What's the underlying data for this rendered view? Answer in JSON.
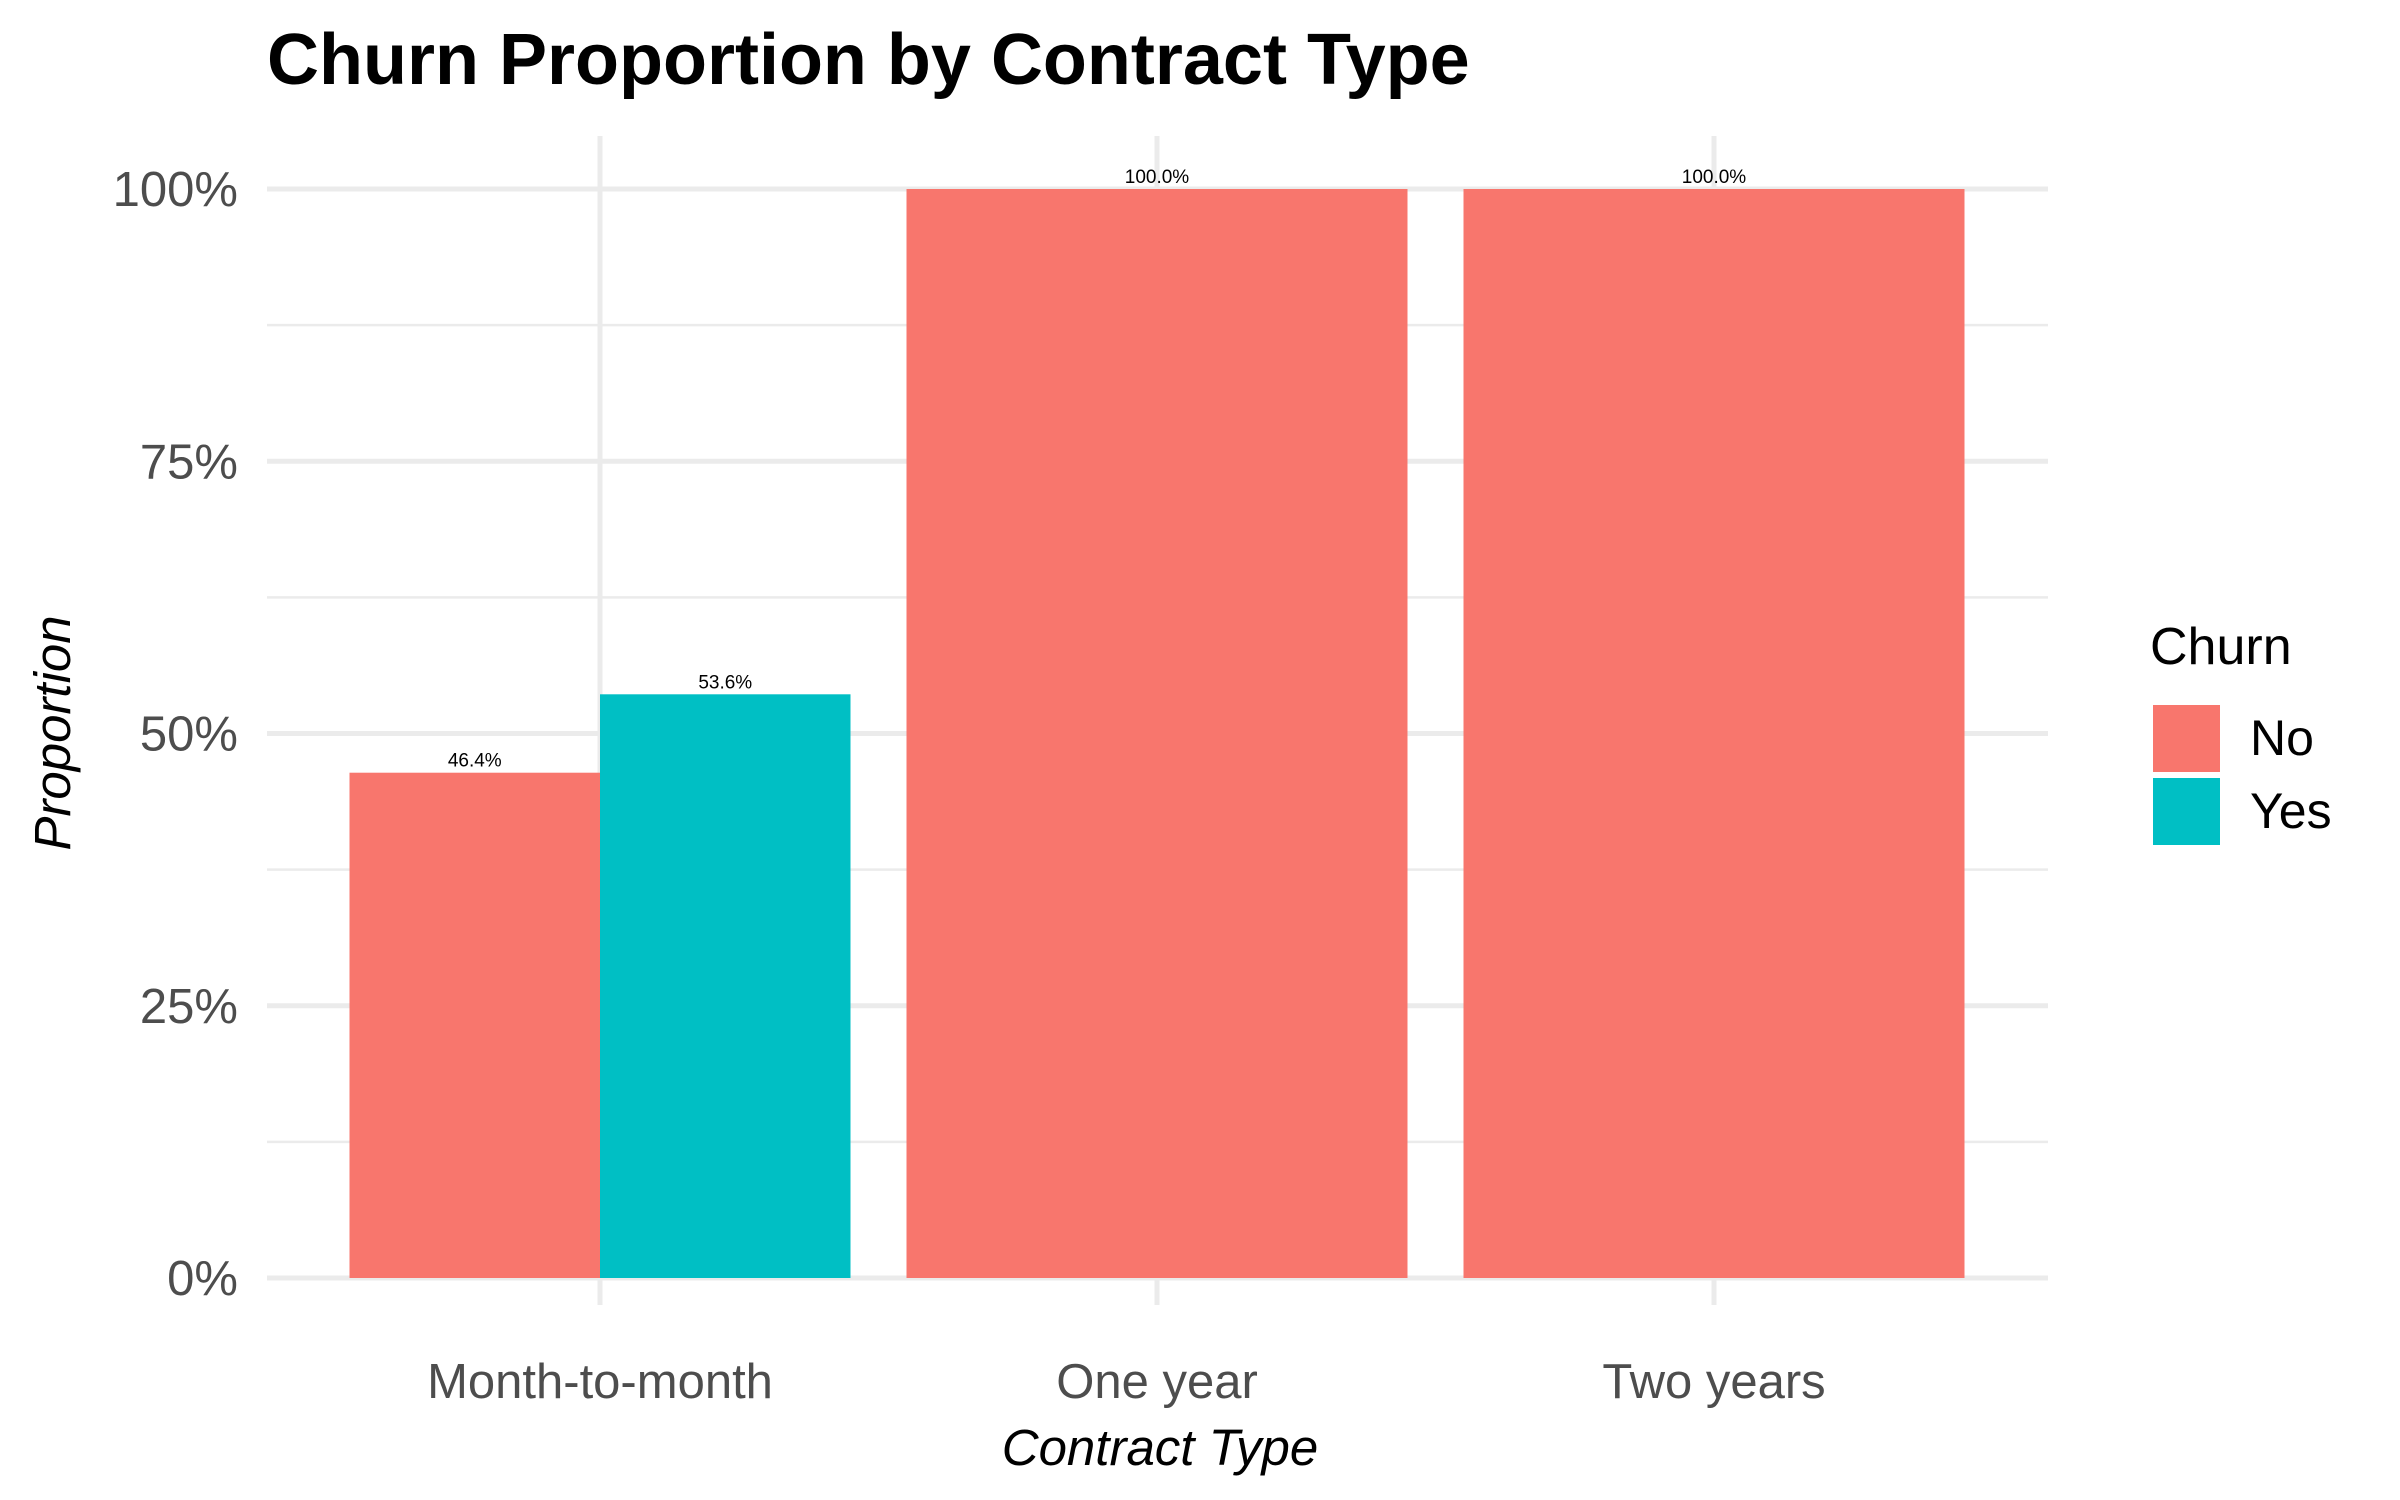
{
  "chart_data": {
    "type": "bar",
    "title": "Churn Proportion by Contract Type",
    "xlabel": "Contract Type",
    "ylabel": "Proportion",
    "categories": [
      "Month-to-month",
      "One year",
      "Two years"
    ],
    "series": [
      {
        "name": "No",
        "color": "#F8766D",
        "values": [
          0.464,
          1.0,
          1.0
        ],
        "labels": [
          "46.4%",
          "100.0%",
          "100.0%"
        ]
      },
      {
        "name": "Yes",
        "color": "#00BFC4",
        "values": [
          0.536,
          null,
          null
        ],
        "labels": [
          "53.6%",
          null,
          null
        ]
      }
    ],
    "ylim": [
      0,
      1
    ],
    "yticks": [
      0,
      0.25,
      0.5,
      0.75,
      1.0
    ],
    "ytick_labels": [
      "0%",
      "25%",
      "50%",
      "75%",
      "100%"
    ],
    "grid": true,
    "legend": {
      "title": "Churn",
      "position": "right"
    },
    "bar_position": "dodge"
  }
}
